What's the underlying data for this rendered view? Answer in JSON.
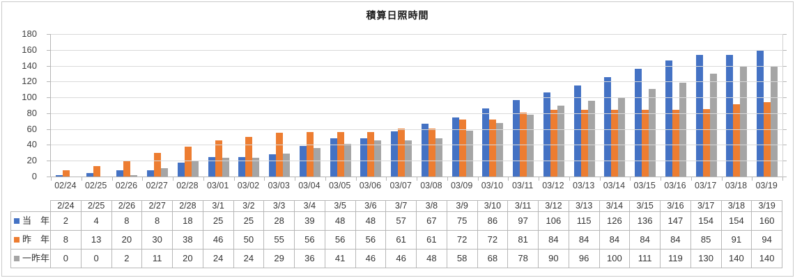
{
  "chart_data": {
    "type": "bar",
    "title": "積算日照時間",
    "x_labels": [
      "02/24",
      "02/25",
      "02/26",
      "02/27",
      "02/28",
      "03/01",
      "03/02",
      "03/03",
      "03/04",
      "03/05",
      "03/06",
      "03/07",
      "03/08",
      "03/09",
      "03/10",
      "03/11",
      "03/12",
      "03/13",
      "03/14",
      "03/15",
      "03/16",
      "03/17",
      "03/18",
      "03/19"
    ],
    "series": [
      {
        "name": "当　年",
        "color": "#4472C4",
        "values": [
          2,
          4,
          8,
          8,
          18,
          25,
          25,
          28,
          39,
          48,
          48,
          57,
          67,
          75,
          86,
          97,
          106,
          115,
          126,
          136,
          147,
          154,
          154,
          160
        ]
      },
      {
        "name": "昨　年",
        "color": "#ED7D31",
        "values": [
          8,
          13,
          20,
          30,
          38,
          46,
          50,
          55,
          56,
          56,
          56,
          61,
          61,
          72,
          72,
          81,
          84,
          84,
          84,
          84,
          84,
          85,
          91,
          94
        ]
      },
      {
        "name": "一昨年",
        "color": "#A5A5A5",
        "values": [
          0,
          0,
          2,
          11,
          20,
          24,
          24,
          29,
          36,
          41,
          46,
          46,
          48,
          58,
          68,
          78,
          90,
          96,
          100,
          111,
          119,
          130,
          140,
          140
        ]
      }
    ],
    "ylim": [
      0,
      180
    ],
    "ystep": 20,
    "y_ticks": [
      "0",
      "20",
      "40",
      "60",
      "80",
      "100",
      "120",
      "140",
      "160",
      "180"
    ],
    "grid": true,
    "legend_position": "data-table-left"
  },
  "data_table": {
    "headers": [
      "2/24",
      "2/25",
      "2/26",
      "2/27",
      "2/28",
      "3/1",
      "3/2",
      "3/3",
      "3/4",
      "3/5",
      "3/6",
      "3/7",
      "3/8",
      "3/9",
      "3/10",
      "3/11",
      "3/12",
      "3/13",
      "3/14",
      "3/15",
      "3/16",
      "3/17",
      "3/18",
      "3/19"
    ]
  },
  "colors": {
    "gridline": "#d9d9d9",
    "axis": "#b5b5b5",
    "table_border": "#b7b7b7",
    "frame_border": "#c9c9c9",
    "text": "#404040"
  }
}
